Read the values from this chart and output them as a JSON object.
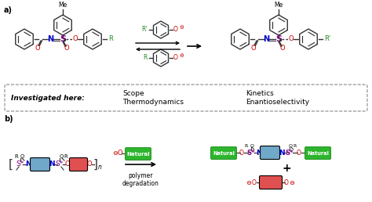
{
  "bg_color": "#ffffff",
  "fig_width": 4.74,
  "fig_height": 2.58,
  "dpi": 100,
  "label_a": "a)",
  "label_b": "b)",
  "investigated_text": "Investigated here:",
  "scope_text": "Scope\nThermodynamics",
  "kinetics_text": "Kinetics\nEnantioselectivity",
  "polymer_text": "polymer\ndegradation",
  "natural_color": "#2db52d",
  "blue_box_color": "#6fa8c8",
  "red_box_color": "#e05050",
  "dashed_box_color": "#888888",
  "R_color": "#228B22",
  "Rprime_color": "#228B22",
  "S_color": "#800080",
  "N_color": "#0000CC",
  "O_color": "#cc0000",
  "bond_color": "#333333"
}
